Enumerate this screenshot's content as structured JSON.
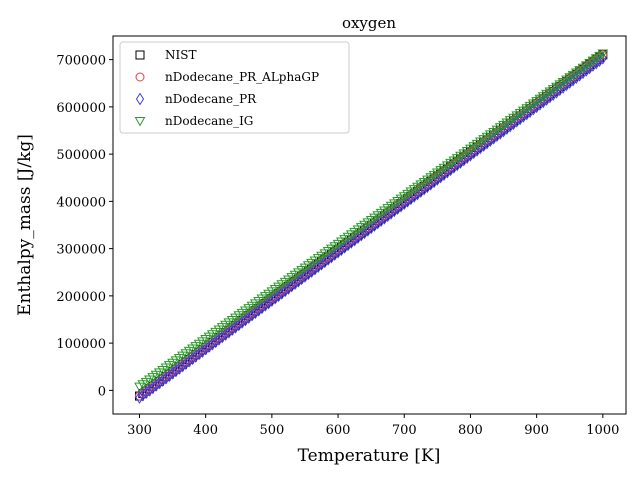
{
  "chart_data": {
    "type": "scatter",
    "title": "oxygen",
    "xlabel": "Temperature [K]",
    "ylabel": "Enthalpy_mass [J/kg]",
    "xlim": [
      260,
      1035
    ],
    "ylim": [
      -50000,
      750000
    ],
    "xticks": [
      300,
      400,
      500,
      600,
      700,
      800,
      900,
      1000
    ],
    "yticks": [
      0,
      100000,
      200000,
      300000,
      400000,
      500000,
      600000,
      700000
    ],
    "legend_position": "top-left",
    "grid": false,
    "series": [
      {
        "name": "NIST",
        "marker": "square",
        "color": "#000000",
        "x": [
          300,
          1000
        ],
        "y": [
          -12000,
          710000
        ]
      },
      {
        "name": "nDodecane_PR_ALphaGP",
        "marker": "circle",
        "color": "#e8403a",
        "x": [
          300,
          1000
        ],
        "y": [
          -12000,
          710000
        ]
      },
      {
        "name": "nDodecane_PR",
        "marker": "diamond",
        "color": "#3a3ae8",
        "x": [
          300,
          1000
        ],
        "y": [
          -15000,
          703000
        ]
      },
      {
        "name": "nDodecane_IG",
        "marker": "triangle-down",
        "color": "#2a9a2a",
        "x": [
          300,
          1000
        ],
        "y": [
          8000,
          713000
        ]
      }
    ]
  }
}
